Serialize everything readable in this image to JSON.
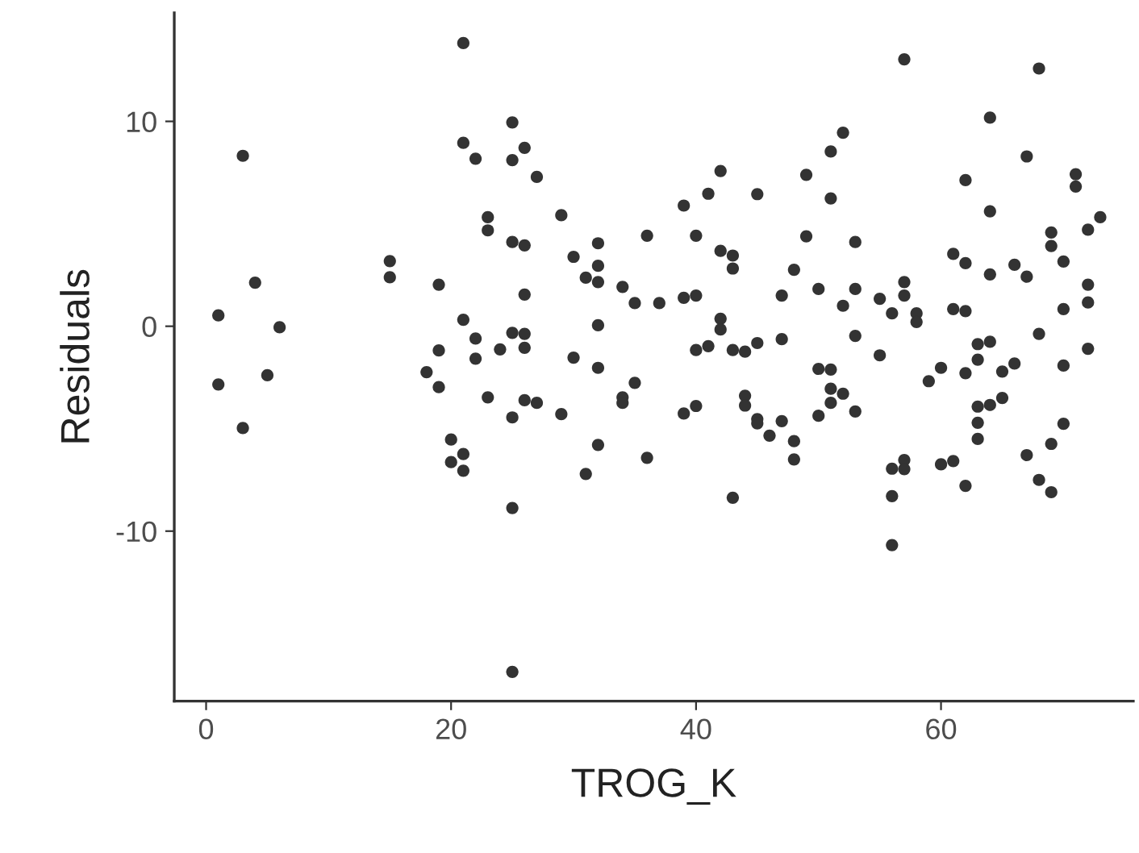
{
  "chart_data": {
    "type": "scatter",
    "xlabel": "TROG_K",
    "ylabel": "Residuals",
    "color": "#333333",
    "marker": "circle",
    "grid": false,
    "legend": false,
    "xlim": [
      -2.6,
      75.7
    ],
    "ylim": [
      -18.3,
      15.3
    ],
    "xticks": [
      0,
      20,
      40,
      60
    ],
    "yticks": [
      -10,
      0,
      10
    ],
    "x": [
      1,
      1,
      3,
      3,
      4,
      5,
      6,
      15,
      15,
      18,
      19,
      19,
      19,
      20,
      20,
      21,
      21,
      21,
      21,
      21,
      22,
      22,
      22,
      23,
      23,
      23,
      24,
      25,
      25,
      25,
      25,
      25,
      25,
      25,
      26,
      26,
      26,
      26,
      26,
      26,
      27,
      27,
      29,
      29,
      30,
      30,
      31,
      31,
      32,
      32,
      32,
      32,
      32,
      32,
      34,
      34,
      34,
      35,
      35,
      36,
      36,
      37,
      39,
      39,
      39,
      40,
      40,
      40,
      40,
      41,
      41,
      42,
      42,
      42,
      42,
      43,
      43,
      43,
      43,
      44,
      44,
      44,
      45,
      45,
      45,
      45,
      46,
      47,
      47,
      47,
      48,
      48,
      48,
      49,
      49,
      50,
      50,
      50,
      51,
      51,
      51,
      51,
      51,
      52,
      52,
      52,
      53,
      53,
      53,
      53,
      55,
      55,
      56,
      56,
      56,
      56,
      57,
      57,
      57,
      57,
      57,
      58,
      58,
      59,
      60,
      60,
      61,
      61,
      61,
      62,
      62,
      62,
      62,
      62,
      63,
      63,
      63,
      63,
      63,
      64,
      64,
      64,
      64,
      64,
      65,
      65,
      66,
      66,
      67,
      67,
      67,
      68,
      68,
      68,
      69,
      69,
      69,
      69,
      70,
      70,
      70,
      70,
      71,
      71,
      72,
      72,
      72,
      72,
      73
    ],
    "values": [
      0.53,
      -2.84,
      8.32,
      -4.97,
      2.13,
      -2.39,
      -0.05,
      3.18,
      2.39,
      -2.24,
      2.03,
      -1.18,
      -2.97,
      -5.53,
      -6.63,
      13.82,
      8.95,
      0.32,
      -6.24,
      -7.05,
      8.18,
      -0.6,
      -1.58,
      5.32,
      4.68,
      -3.47,
      -1.13,
      9.95,
      8.11,
      4.11,
      -0.32,
      -4.45,
      -8.87,
      -16.87,
      8.71,
      3.95,
      1.55,
      -0.37,
      -1.05,
      -3.61,
      7.29,
      -3.74,
      5.42,
      -4.29,
      3.39,
      -1.53,
      2.37,
      -7.21,
      4.05,
      2.95,
      2.16,
      0.05,
      -2.03,
      -5.79,
      1.92,
      -3.47,
      -3.74,
      1.13,
      -2.76,
      4.42,
      -6.42,
      1.13,
      5.89,
      1.39,
      -4.26,
      4.42,
      1.5,
      -1.16,
      -3.89,
      6.47,
      -0.97,
      7.58,
      3.68,
      0.37,
      -0.16,
      3.45,
      2.82,
      -1.16,
      -8.37,
      -1.24,
      -3.39,
      -3.87,
      6.45,
      -0.82,
      -4.53,
      -4.74,
      -5.34,
      1.5,
      -0.63,
      -4.63,
      2.76,
      -5.61,
      -6.5,
      7.39,
      4.39,
      1.82,
      -2.08,
      -4.37,
      8.53,
      6.24,
      -2.11,
      -3.05,
      -3.74,
      9.45,
      1.0,
      -3.29,
      4.11,
      1.82,
      -0.47,
      -4.16,
      1.34,
      -1.42,
      0.63,
      -6.95,
      -8.29,
      -10.68,
      13.03,
      2.16,
      1.5,
      -6.53,
      -6.97,
      0.63,
      0.21,
      -2.68,
      -2.03,
      -6.74,
      3.53,
      0.84,
      -6.58,
      7.13,
      3.08,
      0.74,
      -2.29,
      -7.79,
      -0.87,
      -1.63,
      -3.92,
      -4.71,
      -5.5,
      10.18,
      5.61,
      2.53,
      -0.76,
      -3.84,
      -2.21,
      -3.5,
      3.0,
      -1.82,
      8.29,
      2.42,
      -6.29,
      12.58,
      -0.37,
      -7.5,
      4.58,
      3.92,
      -5.74,
      -8.1,
      3.16,
      0.84,
      -1.92,
      -4.76,
      7.42,
      6.82,
      4.71,
      2.03,
      1.16,
      -1.1,
      5.32
    ]
  }
}
